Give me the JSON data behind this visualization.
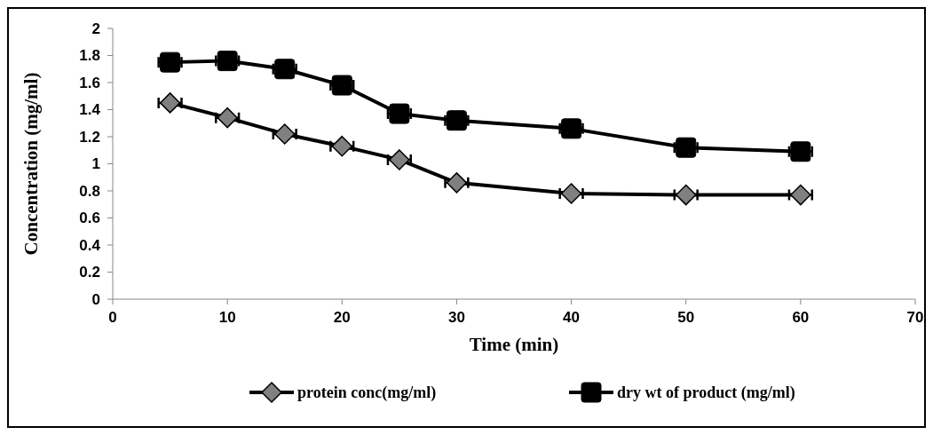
{
  "chart_data": {
    "type": "line",
    "xlabel": "Time (min)",
    "ylabel": "Concentration (mg/ml)",
    "x": [
      5,
      10,
      15,
      20,
      25,
      30,
      40,
      50,
      60
    ],
    "xlim": [
      0,
      70
    ],
    "xticks": [
      0,
      10,
      20,
      30,
      40,
      50,
      60,
      70
    ],
    "ylim": [
      0,
      2
    ],
    "yticks": [
      0,
      0.2,
      0.4,
      0.6,
      0.8,
      1,
      1.2,
      1.4,
      1.6,
      1.8,
      2
    ],
    "legend": "bottom",
    "line_style": "solid",
    "series": [
      {
        "name": "protein conc(mg/ml)",
        "color": "#808080",
        "marker": "diamond",
        "values": [
          1.45,
          1.34,
          1.22,
          1.13,
          1.03,
          0.86,
          0.78,
          0.77,
          0.77
        ],
        "xerrors": [
          1,
          1,
          1,
          1,
          1,
          1,
          1,
          1,
          1
        ]
      },
      {
        "name": "dry wt of product (mg/ml)",
        "color": "#000000",
        "marker": "square",
        "values": [
          1.75,
          1.76,
          1.7,
          1.58,
          1.37,
          1.32,
          1.26,
          1.12,
          1.09
        ],
        "xerrors": [
          1,
          1,
          1,
          1,
          1,
          1,
          1,
          1,
          1
        ]
      }
    ]
  }
}
